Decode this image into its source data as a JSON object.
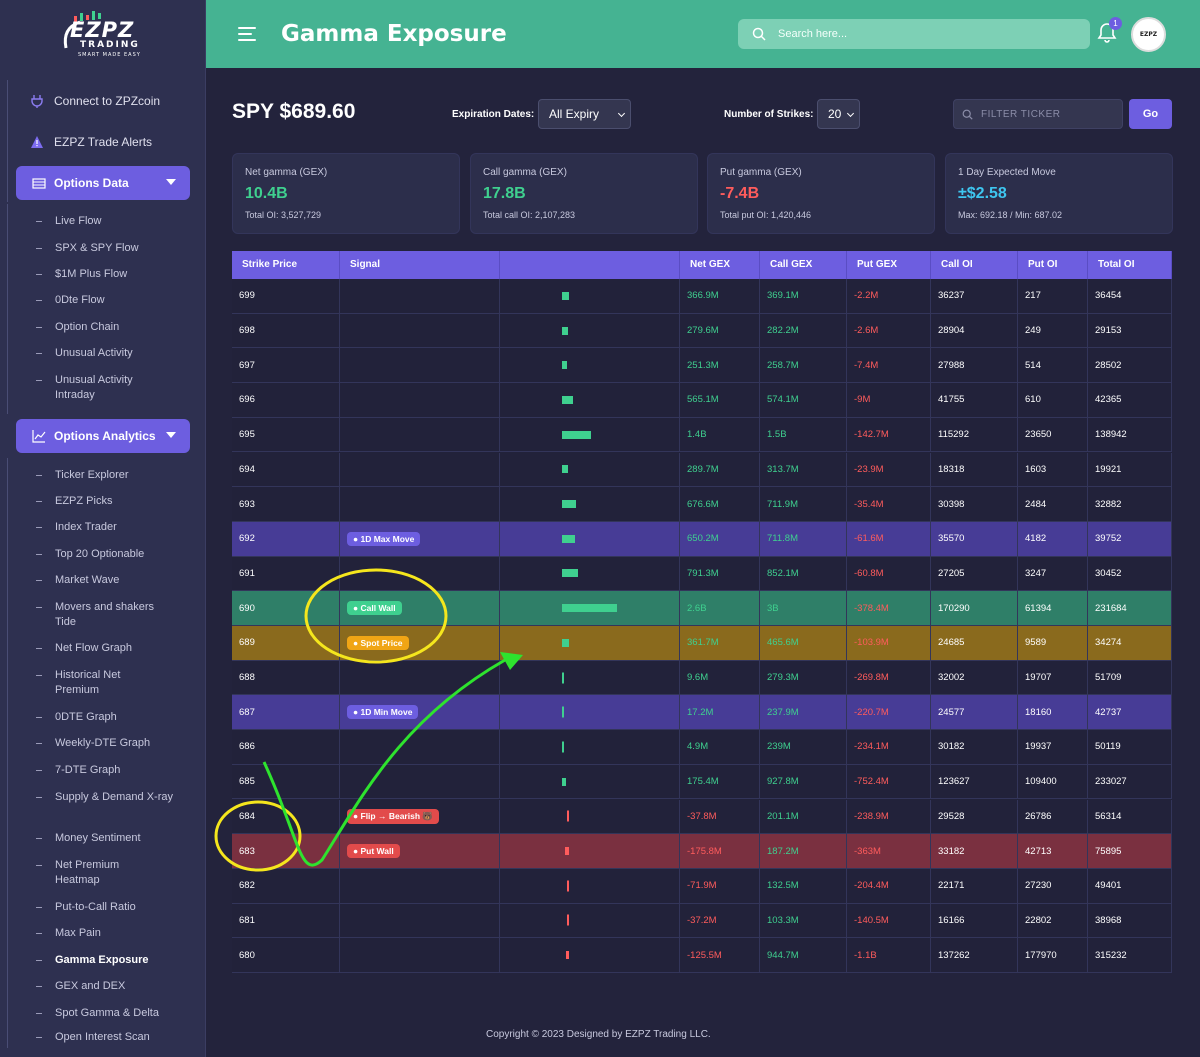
{
  "brand": {
    "main": "EZPZ",
    "sub": "TRADING",
    "tagline": "SMART MADE EASY"
  },
  "sidebar": {
    "top_items": [
      {
        "label": "Connect to ZPZcoin"
      },
      {
        "label": "EZPZ Trade Alerts"
      }
    ],
    "sections": [
      {
        "label": "Options Data",
        "items": [
          {
            "label": "Live Flow"
          },
          {
            "label": "SPX & SPY Flow"
          },
          {
            "label": "$1M Plus Flow"
          },
          {
            "label": "0Dte Flow"
          },
          {
            "label": "Option Chain"
          },
          {
            "label": "Unusual Activity"
          },
          {
            "label": "Unusual Activity Intraday"
          }
        ]
      },
      {
        "label": "Options Analytics",
        "items": [
          {
            "label": "Ticker Explorer"
          },
          {
            "label": "EZPZ Picks"
          },
          {
            "label": "Index Trader"
          },
          {
            "label": "Top 20 Optionable"
          },
          {
            "label": "Market Wave"
          },
          {
            "label": "Movers and shakers Tide"
          },
          {
            "label": "Net Flow Graph"
          },
          {
            "label": "Historical Net Premium"
          },
          {
            "label": "0DTE Graph"
          },
          {
            "label": "Weekly-DTE Graph"
          },
          {
            "label": "7-DTE Graph"
          },
          {
            "label": "Supply & Demand X-ray"
          },
          {
            "label": "Money Sentiment"
          },
          {
            "label": "Net Premium Heatmap"
          },
          {
            "label": "Put-to-Call Ratio"
          },
          {
            "label": "Max Pain"
          },
          {
            "label": "Gamma Exposure"
          },
          {
            "label": "GEX and DEX"
          },
          {
            "label": "Spot Gamma & Delta"
          },
          {
            "label": "Open Interest Scan"
          }
        ]
      }
    ]
  },
  "header": {
    "title": "Gamma Exposure",
    "search_placeholder": "Search here...",
    "notif_count": "1",
    "avatar_text": "EZPZ"
  },
  "controls": {
    "ticker_price": "SPY $689.60",
    "expiry_label": "Expiration Dates:",
    "expiry_value": "All Expiry",
    "strikes_label": "Number of Strikes:",
    "strikes_value": "20",
    "filter_placeholder": "FILTER TICKER",
    "go_label": "Go"
  },
  "cards": [
    {
      "title": "Net gamma (GEX)",
      "value": "10.4B",
      "sub": "Total OI: 3,527,729",
      "color": "#3fd08f"
    },
    {
      "title": "Call gamma (GEX)",
      "value": "17.8B",
      "sub": "Total call OI: 2,107,283",
      "color": "#3fd08f"
    },
    {
      "title": "Put gamma (GEX)",
      "value": "-7.4B",
      "sub": "Total put OI: 1,420,446",
      "color": "#ff5c5c"
    },
    {
      "title": "1 Day Expected Move",
      "value": "±$2.58",
      "sub": "Max: 692.18 / Min: 687.02",
      "color": "#3ec6f0"
    }
  ],
  "table": {
    "headers": [
      "Strike Price",
      "Signal",
      "",
      "Net GEX",
      "Call GEX",
      "Put GEX",
      "Call OI",
      "Put OI",
      "Total OI"
    ],
    "rows": [
      {
        "strike": "699",
        "signal": "",
        "bar": 0.09,
        "net": "366.9M",
        "call": "369.1M",
        "put": "-2.2M",
        "call_oi": "36237",
        "put_oi": "217",
        "total_oi": "36454",
        "hl": ""
      },
      {
        "strike": "698",
        "signal": "",
        "bar": 0.07,
        "net": "279.6M",
        "call": "282.2M",
        "put": "-2.6M",
        "call_oi": "28904",
        "put_oi": "249",
        "total_oi": "29153",
        "hl": ""
      },
      {
        "strike": "697",
        "signal": "",
        "bar": 0.06,
        "net": "251.3M",
        "call": "258.7M",
        "put": "-7.4M",
        "call_oi": "27988",
        "put_oi": "514",
        "total_oi": "28502",
        "hl": ""
      },
      {
        "strike": "696",
        "signal": "",
        "bar": 0.14,
        "net": "565.1M",
        "call": "574.1M",
        "put": "-9M",
        "call_oi": "41755",
        "put_oi": "610",
        "total_oi": "42365",
        "hl": ""
      },
      {
        "strike": "695",
        "signal": "",
        "bar": 0.35,
        "net": "1.4B",
        "call": "1.5B",
        "put": "-142.7M",
        "call_oi": "115292",
        "put_oi": "23650",
        "total_oi": "138942",
        "hl": ""
      },
      {
        "strike": "694",
        "signal": "",
        "bar": 0.07,
        "net": "289.7M",
        "call": "313.7M",
        "put": "-23.9M",
        "call_oi": "18318",
        "put_oi": "1603",
        "total_oi": "19921",
        "hl": ""
      },
      {
        "strike": "693",
        "signal": "",
        "bar": 0.17,
        "net": "676.6M",
        "call": "711.9M",
        "put": "-35.4M",
        "call_oi": "30398",
        "put_oi": "2484",
        "total_oi": "32882",
        "hl": ""
      },
      {
        "strike": "692",
        "signal": "● 1D Max Move",
        "bar": 0.16,
        "net": "650.2M",
        "call": "711.8M",
        "put": "-61.6M",
        "call_oi": "35570",
        "put_oi": "4182",
        "total_oi": "39752",
        "hl": "purple"
      },
      {
        "strike": "691",
        "signal": "",
        "bar": 0.2,
        "net": "791.3M",
        "call": "852.1M",
        "put": "-60.8M",
        "call_oi": "27205",
        "put_oi": "3247",
        "total_oi": "30452",
        "hl": ""
      },
      {
        "strike": "690",
        "signal": "● Call Wall",
        "bar": 0.67,
        "net": "2.6B",
        "call": "3B",
        "put": "-378.4M",
        "call_oi": "170290",
        "put_oi": "61394",
        "total_oi": "231684",
        "hl": "green"
      },
      {
        "strike": "689",
        "signal": "● Spot Price",
        "bar": 0.09,
        "net": "361.7M",
        "call": "465.6M",
        "put": "-103.9M",
        "call_oi": "24685",
        "put_oi": "9589",
        "total_oi": "34274",
        "hl": "gold"
      },
      {
        "strike": "688",
        "signal": "",
        "bar": 0.02,
        "net": "9.6M",
        "call": "279.3M",
        "put": "-269.8M",
        "call_oi": "32002",
        "put_oi": "19707",
        "total_oi": "51709",
        "hl": ""
      },
      {
        "strike": "687",
        "signal": "● 1D Min Move",
        "bar": 0.02,
        "net": "17.2M",
        "call": "237.9M",
        "put": "-220.7M",
        "call_oi": "24577",
        "put_oi": "18160",
        "total_oi": "42737",
        "hl": "purple"
      },
      {
        "strike": "686",
        "signal": "",
        "bar": 0.02,
        "net": "4.9M",
        "call": "239M",
        "put": "-234.1M",
        "call_oi": "30182",
        "put_oi": "19937",
        "total_oi": "50119",
        "hl": ""
      },
      {
        "strike": "685",
        "signal": "",
        "bar": 0.05,
        "net": "175.4M",
        "call": "927.8M",
        "put": "-752.4M",
        "call_oi": "123627",
        "put_oi": "109400",
        "total_oi": "233027",
        "hl": ""
      },
      {
        "strike": "684",
        "signal": "● Flip → Bearish 🐻",
        "bar": -0.02,
        "net": "-37.8M",
        "call": "201.1M",
        "put": "-238.9M",
        "call_oi": "29528",
        "put_oi": "26786",
        "total_oi": "56314",
        "hl": ""
      },
      {
        "strike": "683",
        "signal": "● Put Wall",
        "bar": -0.05,
        "net": "-175.8M",
        "call": "187.2M",
        "put": "-363M",
        "call_oi": "33182",
        "put_oi": "42713",
        "total_oi": "75895",
        "hl": "red"
      },
      {
        "strike": "682",
        "signal": "",
        "bar": -0.03,
        "net": "-71.9M",
        "call": "132.5M",
        "put": "-204.4M",
        "call_oi": "22171",
        "put_oi": "27230",
        "total_oi": "49401",
        "hl": ""
      },
      {
        "strike": "681",
        "signal": "",
        "bar": -0.02,
        "net": "-37.2M",
        "call": "103.3M",
        "put": "-140.5M",
        "call_oi": "16166",
        "put_oi": "22802",
        "total_oi": "38968",
        "hl": ""
      },
      {
        "strike": "680",
        "signal": "",
        "bar": -0.04,
        "net": "-125.5M",
        "call": "944.7M",
        "put": "-1.1B",
        "call_oi": "137262",
        "put_oi": "177970",
        "total_oi": "315232",
        "hl": ""
      }
    ]
  },
  "footer": "Copyright © 2023 Designed by EZPZ Trading LLC.",
  "colors": {
    "accent": "#6d5ee0",
    "header": "#45b392",
    "positive": "#3fd08f",
    "negative": "#ff5c5c",
    "callwall": "#2f7f68",
    "spot": "#8a6a1d",
    "putwall": "#7a3040",
    "signal_purple": "#473c96",
    "annotation_yellow": "#f5e61d",
    "annotation_green": "#2ee32e"
  }
}
